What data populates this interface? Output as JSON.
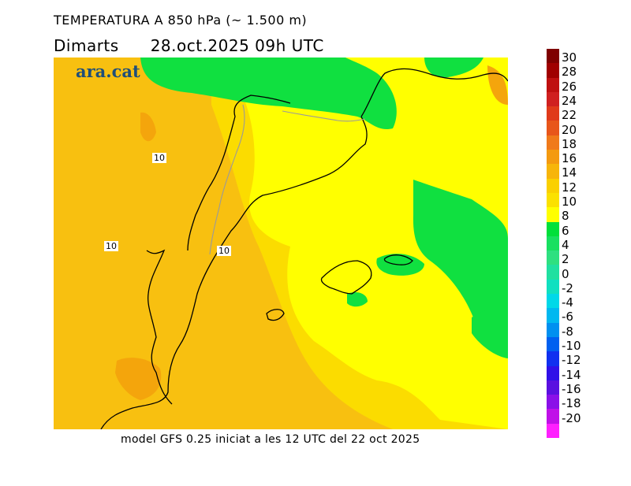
{
  "header": {
    "title": "TEMPERATURA A 850 hPa (~ 1.500 m)",
    "day": "Dimarts",
    "datetime": "28.oct.2025 09h UTC"
  },
  "logo": "ara.cat",
  "contour_labels": [
    "10",
    "10",
    "10"
  ],
  "footer": "model GFS 0.25 iniciat a les 12 UTC del 22 oct 2025",
  "legend": {
    "labels": [
      "30",
      "28",
      "26",
      "24",
      "22",
      "20",
      "18",
      "16",
      "14",
      "12",
      "10",
      "8",
      "6",
      "4",
      "2",
      "0",
      "-2",
      "-4",
      "-6",
      "-8",
      "-10",
      "-12",
      "-14",
      "-16",
      "-18",
      "-20"
    ],
    "colors": [
      "#7f0000",
      "#a00000",
      "#bf1010",
      "#d02020",
      "#e03a1a",
      "#e8561a",
      "#f07a1a",
      "#f49a10",
      "#f7b50a",
      "#fad000",
      "#fbe100",
      "#ffff00",
      "#00e03a",
      "#18e060",
      "#2ee080",
      "#20e0a0",
      "#10e0c0",
      "#00d8e8",
      "#00b8f0",
      "#0090f0",
      "#0060f0",
      "#1030f0",
      "#3010e8",
      "#5a10e0",
      "#8a10e8",
      "#c010e8",
      "#ff20ff"
    ]
  },
  "map": {
    "fields": {
      "orange_10_12": "#f8c010",
      "deep_orange_12_14": "#f4a50c",
      "gold_8_10": "#fbdc00",
      "yellow_6_8": "#ffff00",
      "green_4_6": "#10e040",
      "teal_2_4": "#18d870"
    }
  }
}
